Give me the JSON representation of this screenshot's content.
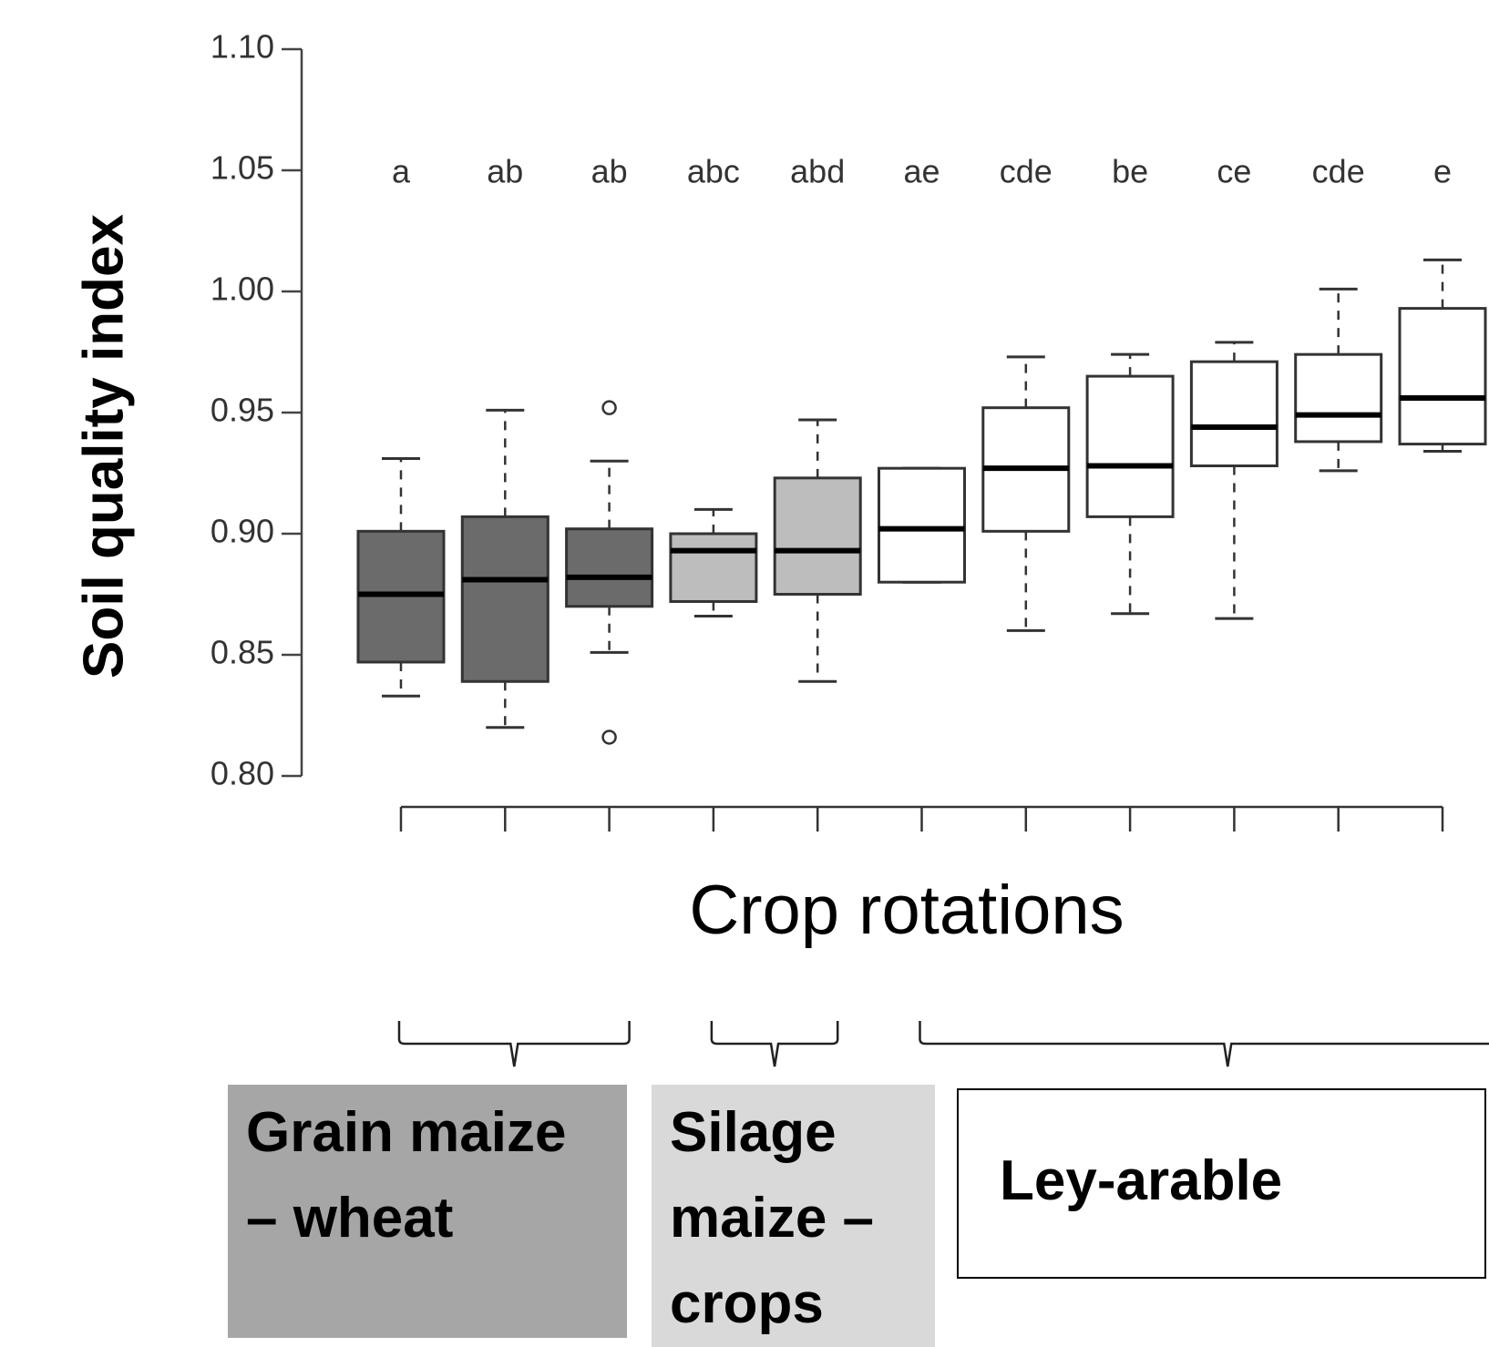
{
  "chart_data": {
    "type": "box",
    "y_label": "Soil quality index",
    "x_label": "Crop rotations",
    "categories": [
      null,
      null,
      null,
      null,
      null,
      null,
      null,
      null,
      null,
      null,
      null
    ],
    "letters": [
      "a",
      "ab",
      "ab",
      "abc",
      "abd",
      "ae",
      "cde",
      "be",
      "ce",
      "cde",
      "e"
    ],
    "ylim": [
      0.8,
      1.1
    ],
    "yticks": [
      {
        "value": 0.8,
        "label": "0.80"
      },
      0.85,
      {
        "value": 0.9,
        "label": "0.90"
      },
      0.95,
      {
        "value": 1.0,
        "label": "1.00"
      },
      1.05,
      {
        "value": 1.1,
        "label": "1.10"
      }
    ],
    "series": [
      {
        "name": "Grain maize – wheat",
        "color": "#6b6b6b",
        "min": [
          0.833,
          0.82,
          0.851
        ],
        "q1": [
          0.847,
          0.839,
          0.87
        ],
        "median": [
          0.875,
          0.881,
          0.882
        ],
        "q3": [
          0.901,
          0.907,
          0.902
        ],
        "max": [
          0.931,
          0.951,
          0.93
        ],
        "outliers": [
          [],
          [],
          [
            0.952,
            0.816
          ]
        ]
      },
      {
        "name": "Silage maize – crops",
        "color": "#bdbdbd",
        "min": [
          0.866,
          0.839
        ],
        "q1": [
          0.872,
          0.875
        ],
        "median": [
          0.893,
          0.893
        ],
        "q3": [
          0.9,
          0.923
        ],
        "max": [
          0.91,
          0.947
        ],
        "outliers": [
          [],
          []
        ]
      },
      {
        "name": "Ley-arable",
        "color": "#ffffff",
        "min": [
          0.88,
          0.86,
          0.867,
          0.865,
          0.926,
          0.934
        ],
        "q1": [
          0.88,
          0.901,
          0.907,
          0.928,
          0.938,
          0.937
        ],
        "median": [
          0.902,
          0.927,
          0.928,
          0.944,
          0.949,
          0.956
        ],
        "q3": [
          0.927,
          0.952,
          0.965,
          0.971,
          0.974,
          0.993
        ],
        "max": [
          0.927,
          0.973,
          0.974,
          0.979,
          1.001,
          1.013
        ],
        "outliers": [
          [],
          [],
          [],
          [],
          [],
          []
        ]
      }
    ]
  }
}
